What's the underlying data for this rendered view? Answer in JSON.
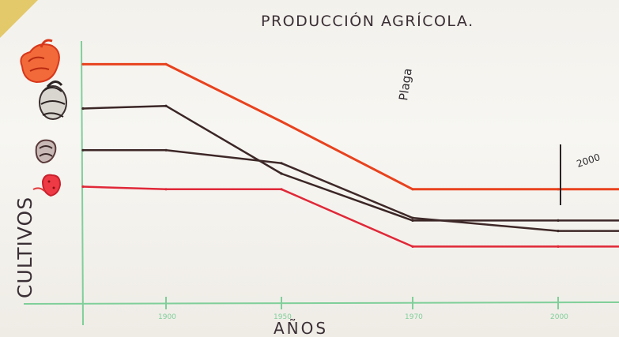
{
  "chart_data": {
    "type": "line",
    "title": "PRODUCCIÓN AGRÍCOLA.",
    "xlabel": "AÑOS",
    "ylabel": "CULTIVOS",
    "x_tick_labels": [
      "1900",
      "1950",
      "1970",
      "2000"
    ],
    "grid": false,
    "legend": "icons on left edge",
    "colors": {
      "axis": "#7fcf9a",
      "series": [
        "#e8421e",
        "#3b2626",
        "#3e2828",
        "#e02838"
      ],
      "text": "#3a2f35"
    },
    "series": [
      {
        "icon": "chicken-icon",
        "x": [
          0,
          1,
          2,
          3,
          4,
          5
        ],
        "values": [
          92,
          92,
          70,
          44,
          44,
          44
        ]
      },
      {
        "icon": "pig-icon",
        "x": [
          0,
          1,
          2,
          3,
          4,
          5
        ],
        "values": [
          75,
          76,
          50,
          32,
          32,
          32
        ]
      },
      {
        "icon": "corn-icon",
        "x": [
          0,
          1,
          2,
          3,
          4,
          5
        ],
        "values": [
          59,
          59,
          54,
          33,
          28,
          28
        ]
      },
      {
        "icon": "strawberry-icon",
        "x": [
          0,
          1,
          2,
          3,
          4,
          5
        ],
        "values": [
          45,
          44,
          44,
          22,
          22,
          22
        ]
      }
    ],
    "annotations": [
      "Plaga",
      "2000"
    ]
  }
}
